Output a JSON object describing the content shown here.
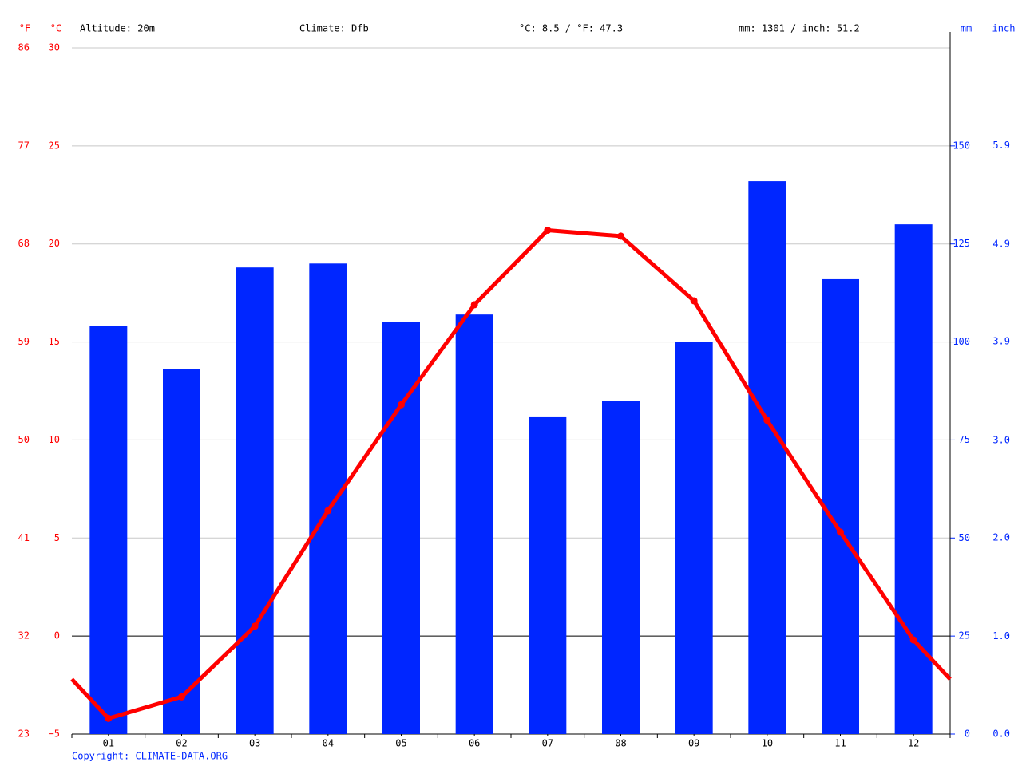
{
  "chart_data": {
    "type": "climate",
    "header": {
      "altitude": "Altitude: 20m",
      "climate": "Climate: Dfb",
      "temperature": "°C: 8.5 / °F: 47.3",
      "precipitation": "mm: 1301 / inch: 51.2"
    },
    "ylabel": "°C",
    "y3label": "°F",
    "y2label": "mm",
    "y4label": "inch",
    "categories": [
      "01",
      "02",
      "03",
      "04",
      "05",
      "06",
      "07",
      "08",
      "09",
      "10",
      "11",
      "12"
    ],
    "series": [
      {
        "color": "#0026ff",
        "axis": "y2",
        "values": [
          104,
          93,
          119,
          120,
          105,
          107,
          81,
          85,
          100,
          141,
          116,
          130
        ]
      },
      {
        "color": "#ff0000",
        "values": [
          -4.2,
          -3.1,
          0.5,
          6.4,
          11.8,
          16.9,
          20.7,
          20.4,
          17.1,
          11.0,
          5.3,
          -0.2
        ]
      }
    ],
    "ylim": [
      -5,
      30
    ],
    "yticks": [
      {
        "value": -5,
        "label": "−5"
      },
      0,
      5,
      10,
      15,
      20,
      25,
      30
    ],
    "y3lim": [
      23,
      86
    ],
    "y3ticks": [
      23,
      32,
      41,
      50,
      59,
      68,
      77,
      86
    ],
    "y2lim": [
      0,
      175
    ],
    "y2ticks": [
      0,
      25,
      50,
      75,
      100,
      125,
      150
    ],
    "y4lim": [
      0,
      6.89
    ],
    "y4ticks": [
      {
        "value": 0,
        "label": "0.0"
      },
      {
        "value": 0.98,
        "label": "1.0"
      },
      {
        "value": 1.97,
        "label": "2.0"
      },
      {
        "value": 2.95,
        "label": "3.0"
      },
      {
        "value": 3.94,
        "label": "3.9"
      },
      {
        "value": 4.92,
        "label": "4.9"
      },
      {
        "value": 5.91,
        "label": "5.9"
      }
    ],
    "grid": true,
    "copyright": "Copyright: CLIMATE-DATA.ORG"
  }
}
